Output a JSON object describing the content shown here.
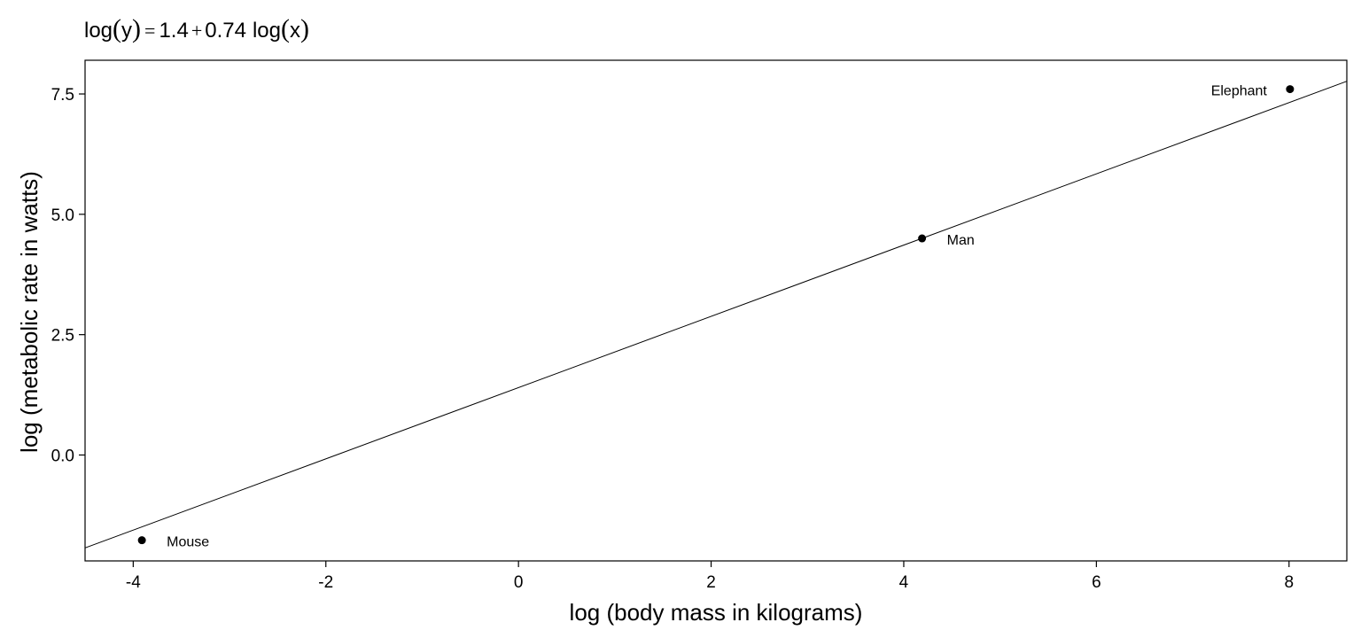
{
  "chart_data": {
    "type": "scatter",
    "title": {
      "log_open": "log",
      "paren_open": "(",
      "y": "y",
      "paren_close": ")",
      "equals": "=",
      "intercept": "1.4",
      "plus": "+",
      "slope": "0.74",
      "log2": "log",
      "paren2_open": "(",
      "x": "x",
      "paren2_close": ")"
    },
    "xlabel": "log (body mass in kilograms)",
    "ylabel": "log (metabolic rate in watts)",
    "xlim": [
      -4.5,
      8.6
    ],
    "ylim": [
      -2.2,
      8.2
    ],
    "xticks": [
      -4,
      -2,
      0,
      2,
      4,
      6,
      8
    ],
    "xtick_labels": [
      "-4",
      "-2",
      "0",
      "2",
      "4",
      "6",
      "8"
    ],
    "yticks": [
      0.0,
      2.5,
      5.0,
      7.5
    ],
    "ytick_labels": [
      "0.0",
      "2.5",
      "5.0",
      "7.5"
    ],
    "grid": false,
    "points": [
      {
        "label": "Mouse",
        "x": -3.91,
        "y": -1.77
      },
      {
        "label": "Man",
        "x": 4.19,
        "y": 4.5
      },
      {
        "label": "Elephant",
        "x": 8.01,
        "y": 7.6
      }
    ],
    "fit_line": {
      "intercept": 1.4,
      "slope": 0.74
    },
    "colors": {
      "points": "#000000",
      "line": "#000000"
    }
  }
}
